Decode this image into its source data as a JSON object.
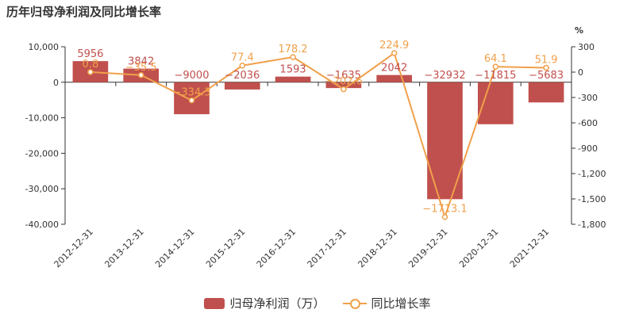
{
  "colors": {
    "bar": "#c0504d",
    "line": "#f0a04b",
    "axis": "#333333"
  },
  "chart_data": {
    "type": "bar",
    "title": "历年归母净利润及同比增长率",
    "categories": [
      "2012-12-31",
      "2013-12-31",
      "2014-12-31",
      "2015-12-31",
      "2016-12-31",
      "2017-12-31",
      "2018-12-31",
      "2019-12-31",
      "2020-12-31",
      "2021-12-31"
    ],
    "series": [
      {
        "name": "归母净利润（万）",
        "type": "bar",
        "axis": "left",
        "values": [
          5956,
          3842,
          -9000,
          -2036,
          1593,
          -1635,
          2042,
          -32932,
          -11815,
          -5683
        ],
        "labels": [
          "5956",
          "3842",
          "−9000",
          "−2036",
          "1593",
          "−1635",
          "2042",
          "−32932",
          "−11815",
          "−5683"
        ]
      },
      {
        "name": "同比增长率",
        "type": "line",
        "axis": "right",
        "values": [
          0.8,
          -35.5,
          -334.3,
          77.4,
          178.2,
          -202.6,
          224.9,
          -1713.1,
          64.1,
          51.9
        ],
        "labels": [
          "0.8",
          "−35.5",
          "−334.3",
          "77.4",
          "178.2",
          "−202.6",
          "224.9",
          "−1713.1",
          "64.1",
          "51.9"
        ]
      }
    ],
    "y_left": {
      "ylim": [
        -40000,
        10000
      ],
      "ticks": [
        "10,000",
        "0",
        "-10,000",
        "-20,000",
        "-30,000",
        "-40,000"
      ],
      "tick_values": [
        10000,
        0,
        -10000,
        -20000,
        -30000,
        -40000
      ]
    },
    "y_right": {
      "label": "%",
      "ylim": [
        -1800,
        300
      ],
      "ticks": [
        "300",
        "0",
        "-300",
        "-600",
        "-900",
        "-1,200",
        "-1,500",
        "-1,800"
      ],
      "tick_values": [
        300,
        0,
        -300,
        -600,
        -900,
        -1200,
        -1500,
        -1800
      ]
    },
    "grid": false,
    "legend_position": "bottom-center"
  }
}
